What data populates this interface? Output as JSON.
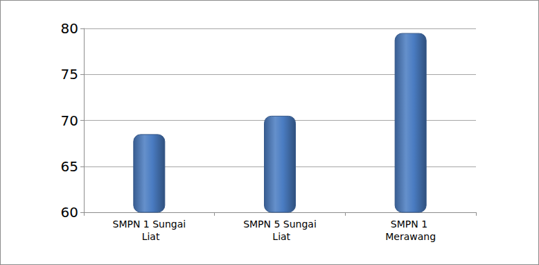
{
  "chart_data": {
    "type": "bar",
    "categories": [
      "SMPN 1 Sungai Liat",
      "SMPN 5 Sungai Liat",
      "SMPN 1 Merawang"
    ],
    "values": [
      68.5,
      70.5,
      79.5
    ],
    "color": "#4a7cc2",
    "ylim": [
      60,
      80
    ],
    "yticks": [
      60,
      65,
      70,
      75,
      80
    ],
    "grid": true
  }
}
